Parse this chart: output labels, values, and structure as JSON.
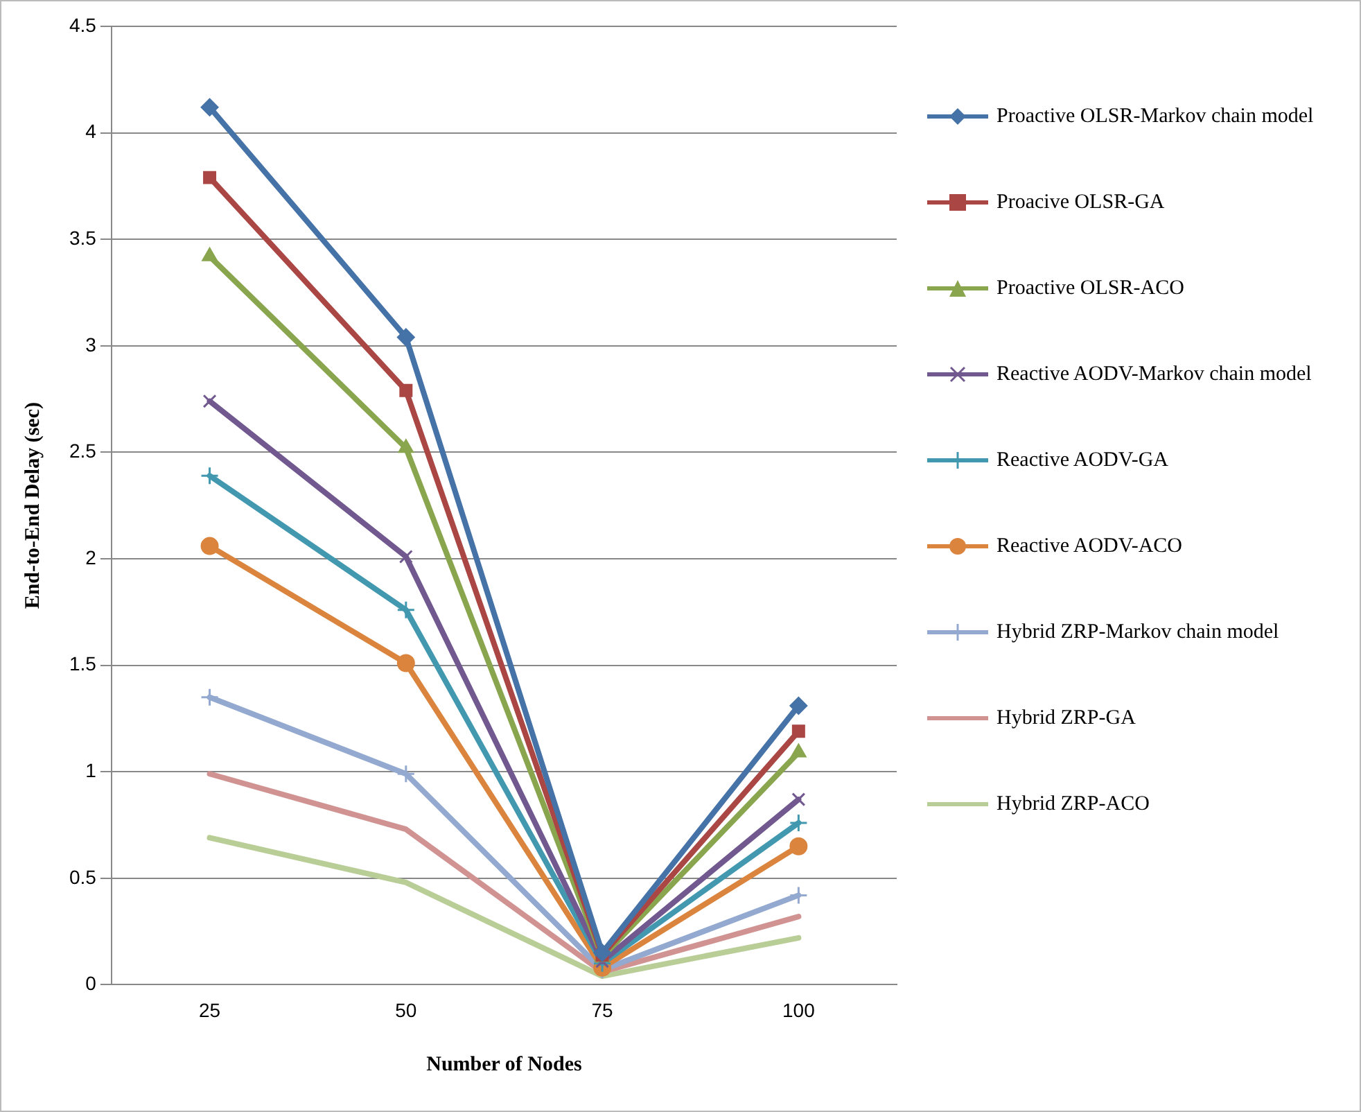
{
  "chart_data": {
    "type": "line",
    "xlabel": "Number of Nodes",
    "ylabel": "End-to-End Delay (sec)",
    "categories": [
      "25",
      "50",
      "75",
      "100"
    ],
    "ylim": [
      0,
      4.5
    ],
    "yticks": [
      0,
      0.5,
      1,
      1.5,
      2,
      2.5,
      3,
      3.5,
      4,
      4.5
    ],
    "grid": "y",
    "legend": "right",
    "line_style": "solid",
    "series": [
      {
        "name": "Proactive OLSR-Markov chain model",
        "color": "#4572a7",
        "marker": "diamond",
        "values": [
          4.12,
          3.04,
          0.15,
          1.31
        ]
      },
      {
        "name": "Proacive OLSR-GA",
        "color": "#aa4643",
        "marker": "square",
        "values": [
          3.79,
          2.79,
          0.14,
          1.19
        ]
      },
      {
        "name": "Proactive OLSR-ACO",
        "color": "#89a54e",
        "marker": "triangle",
        "values": [
          3.42,
          2.52,
          0.13,
          1.09
        ]
      },
      {
        "name": "Reactive AODV-Markov chain model",
        "color": "#71588f",
        "marker": "x",
        "values": [
          2.74,
          2.01,
          0.11,
          0.87
        ]
      },
      {
        "name": "Reactive AODV-GA",
        "color": "#4198af",
        "marker": "cross",
        "values": [
          2.39,
          1.76,
          0.1,
          0.76
        ]
      },
      {
        "name": "Reactive AODV-ACO",
        "color": "#db843d",
        "marker": "circle",
        "values": [
          2.06,
          1.51,
          0.08,
          0.65
        ]
      },
      {
        "name": "Hybrid ZRP-Markov chain model",
        "color": "#93a9cf",
        "marker": "cross",
        "values": [
          1.35,
          0.99,
          0.07,
          0.42
        ]
      },
      {
        "name": "Hybrid ZRP-GA",
        "color": "#d19392",
        "marker": "none",
        "values": [
          0.99,
          0.73,
          0.06,
          0.32
        ]
      },
      {
        "name": "Hybrid ZRP-ACO",
        "color": "#b9cd96",
        "marker": "none",
        "values": [
          0.69,
          0.48,
          0.04,
          0.22
        ]
      }
    ]
  }
}
